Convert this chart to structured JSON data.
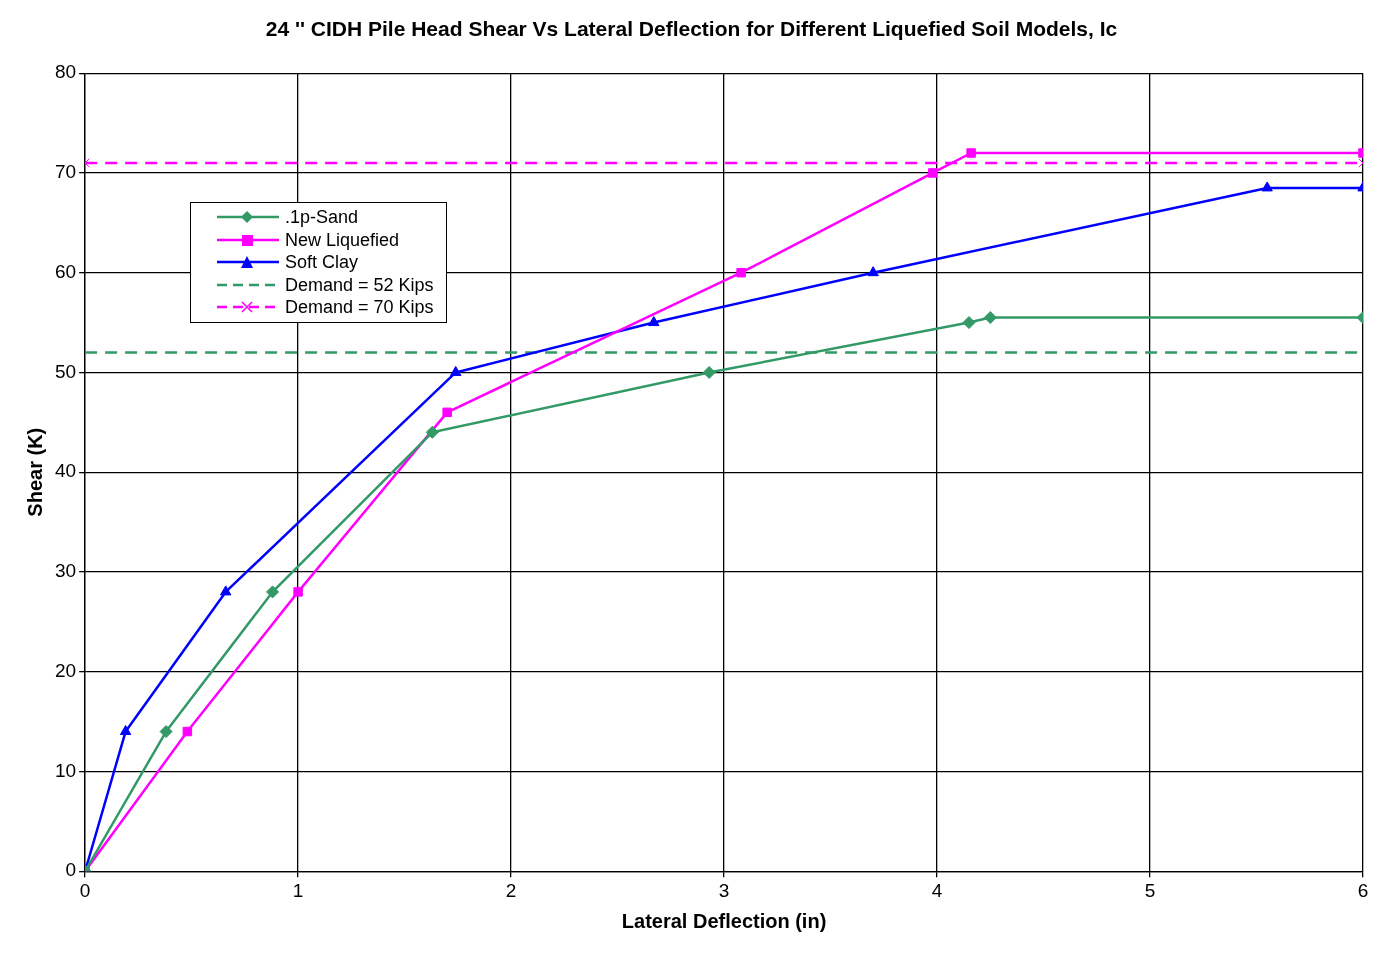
{
  "chart_data": {
    "type": "line",
    "title": "24 '' CIDH Pile Head Shear Vs Lateral Deflection for Different Liquefied Soil Models, Ic",
    "xlabel": "Lateral Deflection (in)",
    "ylabel": "Shear (K)",
    "xlim": [
      0,
      6
    ],
    "xticks": [
      0,
      1,
      2,
      3,
      4,
      5,
      6
    ],
    "ylim": [
      0,
      80
    ],
    "yticks": [
      0,
      10,
      20,
      30,
      40,
      50,
      60,
      70,
      80
    ],
    "grid": true,
    "legend": "top left",
    "line_style": "solid",
    "series": [
      {
        "name": ".1p-Sand",
        "color": "#339966",
        "marker": "diamond",
        "x": [
          0,
          0.38,
          0.88,
          1.63,
          2.93,
          4.15,
          4.25,
          6
        ],
        "values": [
          0,
          14,
          28,
          44,
          50,
          55,
          55.5,
          55.5
        ]
      },
      {
        "name": "New Liquefied",
        "color": "#ff00ff",
        "marker": "square",
        "x": [
          0,
          0.48,
          1,
          1.7,
          3.08,
          3.98,
          4.16,
          6
        ],
        "values": [
          0,
          14,
          28,
          46,
          60,
          70,
          72,
          72
        ]
      },
      {
        "name": "Soft Clay",
        "color": "#0000ff",
        "marker": "triangle",
        "x": [
          0,
          0.19,
          0.66,
          1.74,
          2.67,
          3.7,
          5.55,
          6
        ],
        "values": [
          0,
          14,
          28,
          50,
          55,
          60,
          68.5,
          68.5
        ]
      },
      {
        "name": "Demand = 52 Kips",
        "color": "#339966",
        "marker": "none",
        "line_style": "dashed",
        "x": [
          0,
          6
        ],
        "values": [
          52,
          52
        ]
      },
      {
        "name": "Demand = 70 Kips",
        "color": "#ff00ff",
        "marker": "cross",
        "line_style": "dashed",
        "x": [
          0,
          6
        ],
        "values": [
          71,
          71
        ]
      }
    ]
  }
}
